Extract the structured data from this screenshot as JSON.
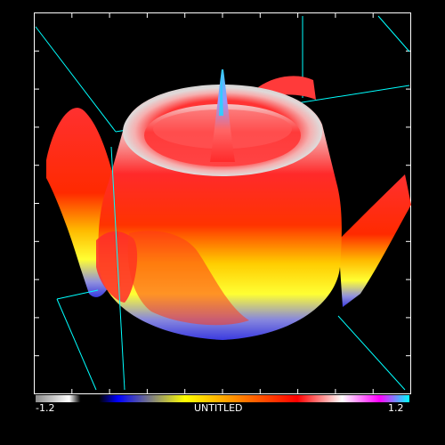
{
  "colorbar": {
    "min_label": "-1.2",
    "max_label": "1.2",
    "title": "UNTITLED",
    "min": -1.2,
    "max": 1.2,
    "stops": [
      "#8a8a8a",
      "#ffffff",
      "#000000",
      "#0000ff",
      "#ffff00",
      "#ff0000",
      "#ffffff",
      "#ff00ff",
      "#00ffff"
    ]
  },
  "surface": {
    "function": "sin(r)",
    "colors": {
      "low": "#3a3ae0",
      "mid_low": "#ffff00",
      "mid": "#ff0000",
      "high": "#ffffff",
      "peak": "#33ccff"
    }
  },
  "bounding_box_color": "#00ffff",
  "frame_color": "#ffffff"
}
